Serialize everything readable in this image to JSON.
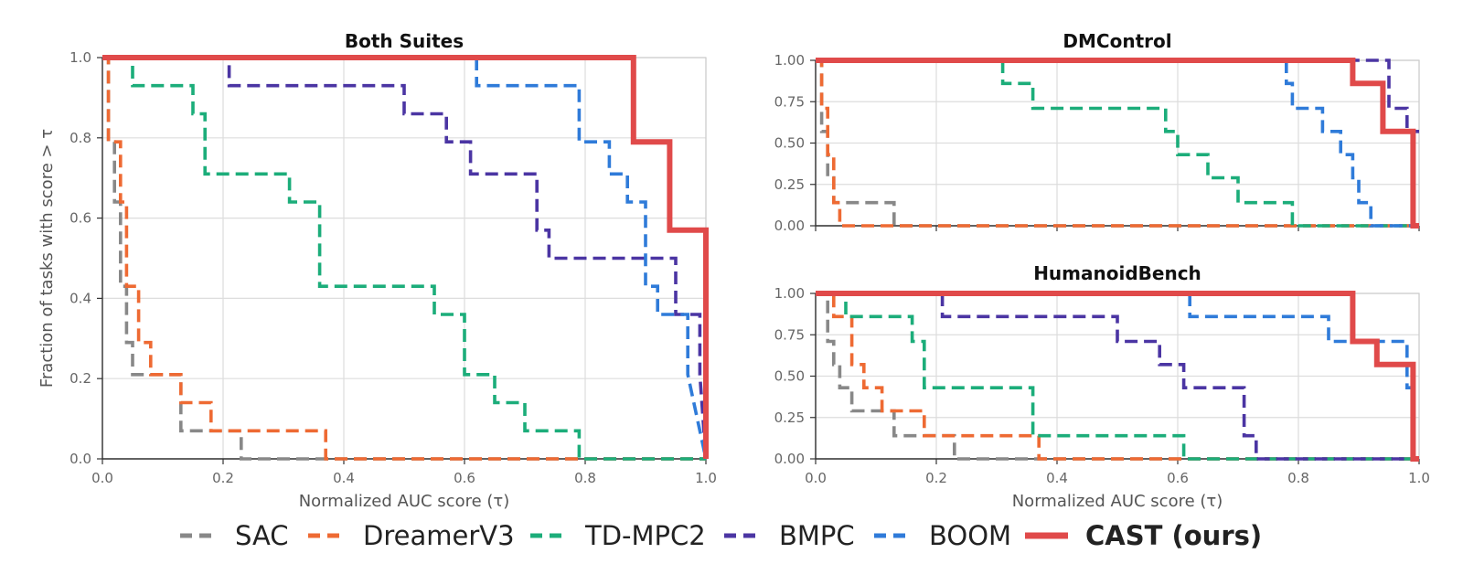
{
  "legend": {
    "items": [
      {
        "label": "SAC",
        "color": "#888888",
        "dashed": true,
        "bold": false
      },
      {
        "label": "DreamerV3",
        "color": "#ee6a33",
        "dashed": true,
        "bold": false
      },
      {
        "label": "TD-MPC2",
        "color": "#1cad7a",
        "dashed": true,
        "bold": false
      },
      {
        "label": "BMPC",
        "color": "#4b35a3",
        "dashed": true,
        "bold": false
      },
      {
        "label": "BOOM",
        "color": "#2f7bd9",
        "dashed": true,
        "bold": false
      },
      {
        "label": "CAST (ours)",
        "color": "#e04a4a",
        "dashed": false,
        "bold": true
      }
    ]
  },
  "chart_data": [
    {
      "type": "line",
      "title": "Both Suites",
      "xlabel": "Normalized AUC score (τ)",
      "ylabel": "Fraction of tasks with score  > τ",
      "xlim": [
        0,
        1
      ],
      "ylim": [
        0,
        1
      ],
      "xticks": [
        "0.0",
        "0.2",
        "0.4",
        "0.6",
        "0.8",
        "1.0"
      ],
      "yticks": [
        "0.0",
        "0.2",
        "0.4",
        "0.6",
        "0.8",
        "1.0"
      ],
      "grid": true,
      "series": [
        {
          "name": "SAC",
          "x": [
            0,
            0.01,
            0.01,
            0.02,
            0.02,
            0.03,
            0.03,
            0.04,
            0.04,
            0.05,
            0.05,
            0.13,
            0.13,
            0.23,
            0.23,
            1
          ],
          "y": [
            1,
            1,
            0.79,
            0.79,
            0.64,
            0.64,
            0.43,
            0.43,
            0.29,
            0.29,
            0.21,
            0.21,
            0.07,
            0.07,
            0,
            0
          ]
        },
        {
          "name": "DreamerV3",
          "x": [
            0,
            0.01,
            0.01,
            0.03,
            0.03,
            0.04,
            0.04,
            0.06,
            0.06,
            0.08,
            0.08,
            0.13,
            0.13,
            0.18,
            0.18,
            0.37,
            0.37,
            1
          ],
          "y": [
            1,
            1,
            0.79,
            0.79,
            0.64,
            0.64,
            0.43,
            0.43,
            0.29,
            0.29,
            0.21,
            0.21,
            0.14,
            0.14,
            0.07,
            0.07,
            0,
            0
          ]
        },
        {
          "name": "TD-MPC2",
          "x": [
            0,
            0.05,
            0.05,
            0.15,
            0.15,
            0.17,
            0.17,
            0.31,
            0.31,
            0.36,
            0.36,
            0.55,
            0.55,
            0.6,
            0.6,
            0.65,
            0.65,
            0.7,
            0.7,
            0.79,
            0.79,
            1
          ],
          "y": [
            1,
            1,
            0.93,
            0.93,
            0.86,
            0.86,
            0.71,
            0.71,
            0.64,
            0.64,
            0.43,
            0.43,
            0.36,
            0.36,
            0.21,
            0.21,
            0.14,
            0.14,
            0.07,
            0.07,
            0,
            0
          ]
        },
        {
          "name": "BMPC",
          "x": [
            0,
            0.21,
            0.21,
            0.5,
            0.5,
            0.57,
            0.57,
            0.61,
            0.61,
            0.72,
            0.72,
            0.74,
            0.74,
            0.95,
            0.95,
            0.99,
            0.99,
            1
          ],
          "y": [
            1,
            1,
            0.93,
            0.93,
            0.86,
            0.86,
            0.79,
            0.79,
            0.71,
            0.71,
            0.57,
            0.57,
            0.5,
            0.5,
            0.36,
            0.36,
            0.21,
            0
          ]
        },
        {
          "name": "BOOM",
          "x": [
            0.62,
            0.62,
            0.79,
            0.79,
            0.84,
            0.84,
            0.87,
            0.87,
            0.9,
            0.9,
            0.92,
            0.92,
            0.97,
            0.97,
            1
          ],
          "y": [
            1,
            0.93,
            0.93,
            0.79,
            0.79,
            0.71,
            0.71,
            0.64,
            0.64,
            0.43,
            0.43,
            0.36,
            0.36,
            0.21,
            0
          ]
        },
        {
          "name": "CAST (ours)",
          "x": [
            0,
            0.88,
            0.88,
            0.9,
            0.9,
            0.94,
            0.94,
            1,
            1
          ],
          "y": [
            1,
            1,
            0.79,
            0.79,
            0.79,
            0.79,
            0.57,
            0.57,
            0
          ]
        }
      ]
    },
    {
      "type": "line",
      "title": "DMControl",
      "xlabel": "",
      "ylabel": "",
      "xlim": [
        0,
        1
      ],
      "ylim": [
        0,
        1
      ],
      "xticks": [
        "",
        "",
        "",
        "",
        "",
        ""
      ],
      "yticks": [
        "0.00",
        "0.25",
        "0.50",
        "0.75",
        "1.00"
      ],
      "grid": true,
      "series": [
        {
          "name": "SAC",
          "x": [
            0,
            0.01,
            0.01,
            0.02,
            0.02,
            0.03,
            0.03,
            0.13,
            0.13,
            1
          ],
          "y": [
            1,
            1,
            0.57,
            0.57,
            0.29,
            0.29,
            0.14,
            0.14,
            0,
            0
          ]
        },
        {
          "name": "DreamerV3",
          "x": [
            0,
            0.01,
            0.01,
            0.02,
            0.02,
            0.03,
            0.03,
            0.04,
            0.04,
            1
          ],
          "y": [
            1,
            1,
            0.71,
            0.71,
            0.43,
            0.43,
            0.14,
            0.14,
            0,
            0
          ]
        },
        {
          "name": "TD-MPC2",
          "x": [
            0.31,
            0.31,
            0.36,
            0.36,
            0.58,
            0.58,
            0.6,
            0.6,
            0.65,
            0.65,
            0.7,
            0.7,
            0.79,
            0.79,
            1
          ],
          "y": [
            1,
            0.86,
            0.86,
            0.71,
            0.71,
            0.57,
            0.57,
            0.43,
            0.43,
            0.29,
            0.29,
            0.14,
            0.14,
            0,
            0
          ]
        },
        {
          "name": "BMPC",
          "x": [
            0.88,
            0.88,
            0.95,
            0.95,
            0.98,
            0.98,
            1
          ],
          "y": [
            1,
            1,
            1,
            0.71,
            0.71,
            0.57,
            0.57
          ]
        },
        {
          "name": "BOOM",
          "x": [
            0.78,
            0.78,
            0.79,
            0.79,
            0.84,
            0.84,
            0.87,
            0.87,
            0.89,
            0.89,
            0.9,
            0.9,
            0.92,
            0.92,
            1
          ],
          "y": [
            1,
            0.86,
            0.86,
            0.71,
            0.71,
            0.57,
            0.57,
            0.43,
            0.43,
            0.29,
            0.29,
            0.14,
            0.14,
            0,
            0
          ]
        },
        {
          "name": "CAST (ours)",
          "x": [
            0,
            0.89,
            0.89,
            0.94,
            0.94,
            0.98,
            0.98,
            0.99,
            0.99,
            1
          ],
          "y": [
            1,
            1,
            0.86,
            0.86,
            0.57,
            0.57,
            0.57,
            0.57,
            0,
            0
          ]
        }
      ]
    },
    {
      "type": "line",
      "title": "HumanoidBench",
      "xlabel": "Normalized AUC score (τ)",
      "ylabel": "",
      "xlim": [
        0,
        1
      ],
      "ylim": [
        0,
        1
      ],
      "xticks": [
        "0.0",
        "0.2",
        "0.4",
        "0.6",
        "0.8",
        "1.0"
      ],
      "yticks": [
        "0.00",
        "0.25",
        "0.50",
        "0.75",
        "1.00"
      ],
      "grid": true,
      "series": [
        {
          "name": "SAC",
          "x": [
            0,
            0.02,
            0.02,
            0.03,
            0.03,
            0.04,
            0.04,
            0.06,
            0.06,
            0.13,
            0.13,
            0.23,
            0.23,
            1
          ],
          "y": [
            1,
            1,
            0.71,
            0.71,
            0.57,
            0.57,
            0.43,
            0.43,
            0.29,
            0.29,
            0.14,
            0.14,
            0,
            0
          ]
        },
        {
          "name": "DreamerV3",
          "x": [
            0,
            0.03,
            0.03,
            0.06,
            0.06,
            0.08,
            0.08,
            0.11,
            0.11,
            0.13,
            0.13,
            0.18,
            0.18,
            0.37,
            0.37,
            1
          ],
          "y": [
            1,
            1,
            0.86,
            0.86,
            0.57,
            0.57,
            0.43,
            0.43,
            0.29,
            0.29,
            0.29,
            0.29,
            0.14,
            0.14,
            0,
            0
          ]
        },
        {
          "name": "TD-MPC2",
          "x": [
            0,
            0.05,
            0.05,
            0.16,
            0.16,
            0.18,
            0.18,
            0.36,
            0.36,
            0.61,
            0.61,
            1
          ],
          "y": [
            1,
            1,
            0.86,
            0.86,
            0.71,
            0.71,
            0.43,
            0.43,
            0.14,
            0.14,
            0,
            0
          ]
        },
        {
          "name": "BMPC",
          "x": [
            0.21,
            0.21,
            0.5,
            0.5,
            0.57,
            0.57,
            0.61,
            0.61,
            0.71,
            0.71,
            0.73,
            0.73,
            1
          ],
          "y": [
            1,
            0.86,
            0.86,
            0.71,
            0.71,
            0.57,
            0.57,
            0.43,
            0.43,
            0.14,
            0.14,
            0,
            0
          ]
        },
        {
          "name": "BOOM",
          "x": [
            0.62,
            0.62,
            0.85,
            0.85,
            0.96,
            0.96,
            0.98,
            0.98,
            1
          ],
          "y": [
            1,
            0.86,
            0.86,
            0.71,
            0.71,
            0.71,
            0.71,
            0.43,
            0.43
          ]
        },
        {
          "name": "CAST (ours)",
          "x": [
            0,
            0.89,
            0.89,
            0.93,
            0.93,
            0.98,
            0.98,
            0.99,
            0.99,
            1
          ],
          "y": [
            1,
            1,
            0.71,
            0.71,
            0.57,
            0.57,
            0.57,
            0.57,
            0,
            0
          ]
        }
      ]
    }
  ]
}
